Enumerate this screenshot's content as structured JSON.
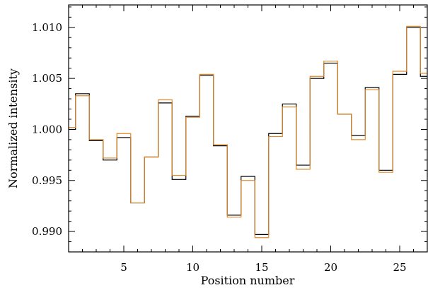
{
  "chart_data": {
    "type": "line",
    "step": true,
    "title": "",
    "xlabel": "Position number",
    "ylabel": "Normalized intensity",
    "xlim": [
      1,
      27
    ],
    "ylim": [
      0.988,
      1.0122
    ],
    "xticks": [
      5,
      10,
      15,
      20,
      25
    ],
    "xtick_labels": [
      "5",
      "10",
      "15",
      "20",
      "25"
    ],
    "yticks": [
      0.99,
      0.995,
      1.0,
      1.005,
      1.01
    ],
    "ytick_labels": [
      "0.990",
      "0.995",
      "1.000",
      "1.005",
      "1.010"
    ],
    "grid": false,
    "x": [
      1,
      2,
      3,
      4,
      5,
      6,
      7,
      8,
      9,
      10,
      11,
      12,
      13,
      14,
      15,
      16,
      17,
      18,
      19,
      20,
      21,
      22,
      23,
      24,
      25,
      26,
      27
    ],
    "series": [
      {
        "color": "#000000",
        "values": [
          1.0,
          1.0035,
          0.9989,
          0.997,
          0.9992,
          0.9928,
          0.9973,
          1.0026,
          0.9951,
          1.0013,
          1.0053,
          0.9984,
          0.9916,
          0.9954,
          0.9897,
          0.9996,
          1.0025,
          0.9965,
          1.005,
          1.0065,
          1.0015,
          0.9994,
          1.0041,
          0.996,
          1.0054,
          1.01,
          1.0052
        ]
      },
      {
        "color": "#e08a2c",
        "values": [
          1.0002,
          1.0033,
          0.999,
          0.9972,
          0.9996,
          0.9928,
          0.9973,
          1.0029,
          0.9955,
          1.0012,
          1.0054,
          0.9985,
          0.9914,
          0.995,
          0.9894,
          0.9993,
          1.0022,
          0.9961,
          1.0052,
          1.0067,
          1.0015,
          0.999,
          1.0039,
          0.9958,
          1.0057,
          1.0101,
          1.0055
        ]
      }
    ]
  }
}
